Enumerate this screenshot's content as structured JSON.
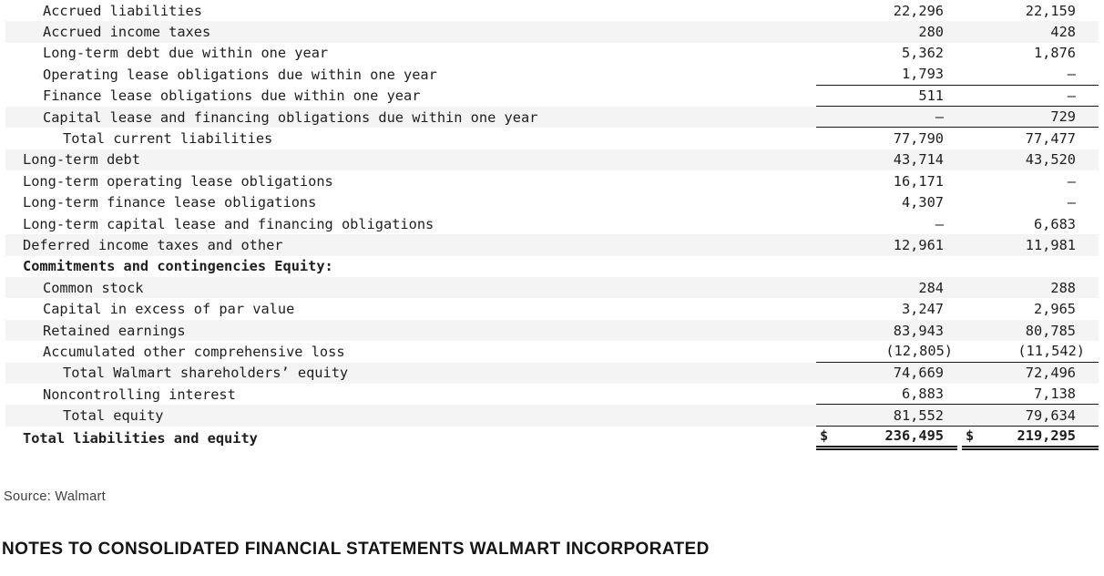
{
  "table": {
    "description": "Consolidated balance sheet excerpt - liabilities and equity (amounts in millions)",
    "rows": [
      {
        "label": "Accrued liabilities",
        "indent": 2,
        "bold": false,
        "shaded": false,
        "v1": "22,296",
        "v2": "22,159",
        "rule": "none"
      },
      {
        "label": "Accrued income taxes",
        "indent": 2,
        "bold": false,
        "shaded": true,
        "v1": "280",
        "v2": "428",
        "rule": "none"
      },
      {
        "label": "Long-term debt due within one year",
        "indent": 2,
        "bold": false,
        "shaded": false,
        "v1": "5,362",
        "v2": "1,876",
        "rule": "none"
      },
      {
        "label": "Operating lease obligations due within one year",
        "indent": 2,
        "bold": false,
        "shaded": false,
        "v1": "1,793",
        "v2": "—",
        "rule": "single"
      },
      {
        "label": "Finance lease obligations due within one year",
        "indent": 2,
        "bold": false,
        "shaded": false,
        "v1": "511",
        "v2": "—",
        "rule": "single"
      },
      {
        "label": "Capital lease and financing obligations due within one year",
        "indent": 2,
        "bold": false,
        "shaded": true,
        "v1": "—",
        "v2": "729",
        "rule": "single"
      },
      {
        "label": "Total current liabilities",
        "indent": 3,
        "bold": false,
        "shaded": false,
        "v1": "77,790",
        "v2": "77,477",
        "rule": "none"
      },
      {
        "label": "Long-term debt",
        "indent": 1,
        "bold": false,
        "shaded": true,
        "v1": "43,714",
        "v2": "43,520",
        "rule": "none"
      },
      {
        "label": "Long-term operating lease obligations",
        "indent": 1,
        "bold": false,
        "shaded": false,
        "v1": "16,171",
        "v2": "—",
        "rule": "none"
      },
      {
        "label": "Long-term finance lease obligations",
        "indent": 1,
        "bold": false,
        "shaded": false,
        "v1": "4,307",
        "v2": "—",
        "rule": "none"
      },
      {
        "label": "Long-term capital lease and financing obligations",
        "indent": 1,
        "bold": false,
        "shaded": false,
        "v1": "—",
        "v2": "6,683",
        "rule": "none"
      },
      {
        "label": "Deferred income taxes and other",
        "indent": 1,
        "bold": false,
        "shaded": true,
        "v1": "12,961",
        "v2": "11,981",
        "rule": "none"
      },
      {
        "label": "Commitments and contingencies Equity:",
        "indent": 1,
        "bold": true,
        "shaded": false,
        "v1": "",
        "v2": "",
        "rule": "none"
      },
      {
        "label": "Common stock",
        "indent": 2,
        "bold": false,
        "shaded": true,
        "v1": "284",
        "v2": "288",
        "rule": "none"
      },
      {
        "label": "Capital in excess of par value",
        "indent": 2,
        "bold": false,
        "shaded": false,
        "v1": "3,247",
        "v2": "2,965",
        "rule": "none"
      },
      {
        "label": "Retained earnings",
        "indent": 2,
        "bold": false,
        "shaded": true,
        "v1": "83,943",
        "v2": "80,785",
        "rule": "none"
      },
      {
        "label": "Accumulated other comprehensive loss",
        "indent": 2,
        "bold": false,
        "shaded": false,
        "v1": "(12,805)",
        "v2": "(11,542)",
        "rule": "single"
      },
      {
        "label": "Total Walmart shareholders’ equity",
        "indent": 3,
        "bold": false,
        "shaded": true,
        "v1": "74,669",
        "v2": "72,496",
        "rule": "none"
      },
      {
        "label": "Noncontrolling interest",
        "indent": 2,
        "bold": false,
        "shaded": false,
        "v1": "6,883",
        "v2": "7,138",
        "rule": "single"
      },
      {
        "label": "Total equity",
        "indent": 3,
        "bold": false,
        "shaded": true,
        "v1": "81,552",
        "v2": "79,634",
        "rule": "single"
      },
      {
        "label": "Total liabilities and equity",
        "indent": 1,
        "bold": true,
        "shaded": false,
        "currency": "$",
        "v1": "236,495",
        "v2": "219,295",
        "rule": "double"
      }
    ]
  },
  "source": {
    "label": "Source: Walmart"
  },
  "heading": {
    "title": "NOTES TO CONSOLIDATED FINANCIAL STATEMENTS WALMART INCORPORATED"
  }
}
